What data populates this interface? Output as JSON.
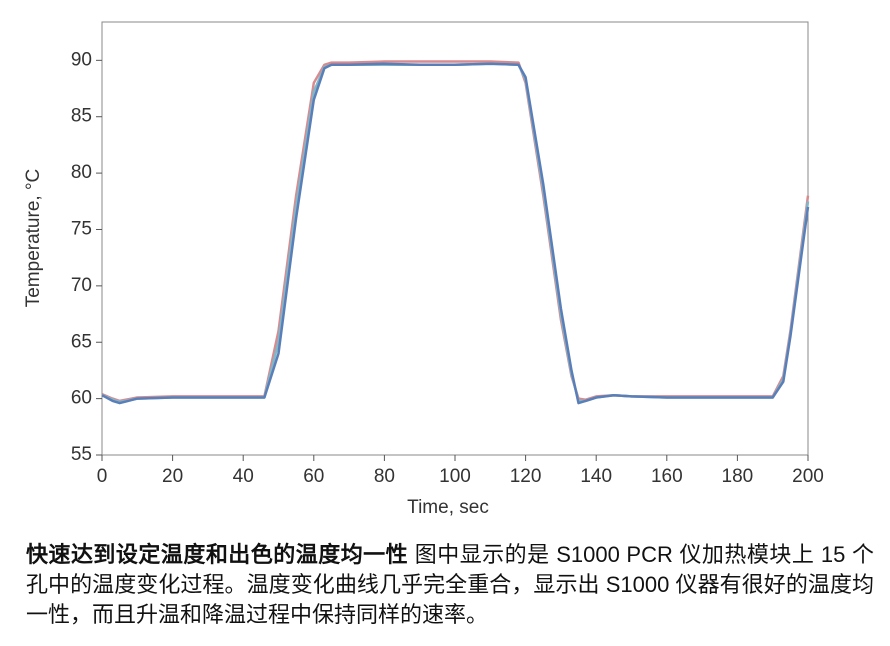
{
  "chart_data": {
    "type": "line",
    "xlabel": "Time, sec",
    "ylabel": "Temperature, °C",
    "x": [
      0,
      3,
      5,
      10,
      20,
      30,
      40,
      46,
      50,
      55,
      60,
      63,
      65,
      70,
      80,
      90,
      100,
      110,
      118,
      120,
      125,
      130,
      133,
      135,
      137,
      140,
      145,
      150,
      160,
      170,
      180,
      190,
      193,
      195,
      200
    ],
    "series": [
      {
        "color": "#d98a8e",
        "values": [
          60.4,
          60,
          59.8,
          60.1,
          60.2,
          60.2,
          60.2,
          60.2,
          66,
          78,
          88,
          89.6,
          89.8,
          89.8,
          89.9,
          89.9,
          89.9,
          89.9,
          89.8,
          88,
          78,
          67,
          62,
          60,
          59.9,
          60.2,
          60.3,
          60.2,
          60.2,
          60.2,
          60.2,
          60.2,
          62,
          66,
          78
        ]
      },
      {
        "color": "#7fb8c8",
        "values": [
          60.3,
          59.9,
          59.7,
          60,
          60.1,
          60.1,
          60.1,
          60.1,
          65,
          77,
          87.2,
          89.4,
          89.6,
          89.6,
          89.6,
          89.6,
          89.6,
          89.7,
          89.6,
          88.3,
          78.5,
          67.5,
          62.2,
          59.8,
          59.8,
          60.1,
          60.3,
          60.2,
          60.1,
          60.1,
          60.1,
          60.1,
          61.7,
          65.7,
          77.5
        ]
      },
      {
        "color": "#5a7fb8",
        "values": [
          60.3,
          59.8,
          59.6,
          60,
          60.1,
          60.1,
          60.1,
          60.1,
          64,
          76,
          86.5,
          89.3,
          89.6,
          89.6,
          89.7,
          89.6,
          89.6,
          89.7,
          89.6,
          88.5,
          79,
          68,
          62.5,
          59.6,
          59.8,
          60.1,
          60.3,
          60.2,
          60.1,
          60.1,
          60.1,
          60.1,
          61.5,
          65.5,
          77
        ]
      }
    ],
    "xlim": [
      0,
      200
    ],
    "xticks": [
      0,
      20,
      40,
      60,
      80,
      100,
      120,
      140,
      160,
      180,
      200
    ],
    "ylim": [
      55,
      93.4
    ],
    "yticks": [
      55,
      60,
      65,
      70,
      75,
      80,
      85,
      90
    ],
    "grid": false
  },
  "caption": {
    "title": "快速达到设定温度和出色的温度均一性",
    "text": "图中显示的是 S1000 PCR 仪加热模块上 15 个孔中的温度变化过程。温度变化曲线几乎完全重合，显示出 S1000 仪器有很好的温度均一性，而且升温和降温过程中保持同样的速率。"
  }
}
